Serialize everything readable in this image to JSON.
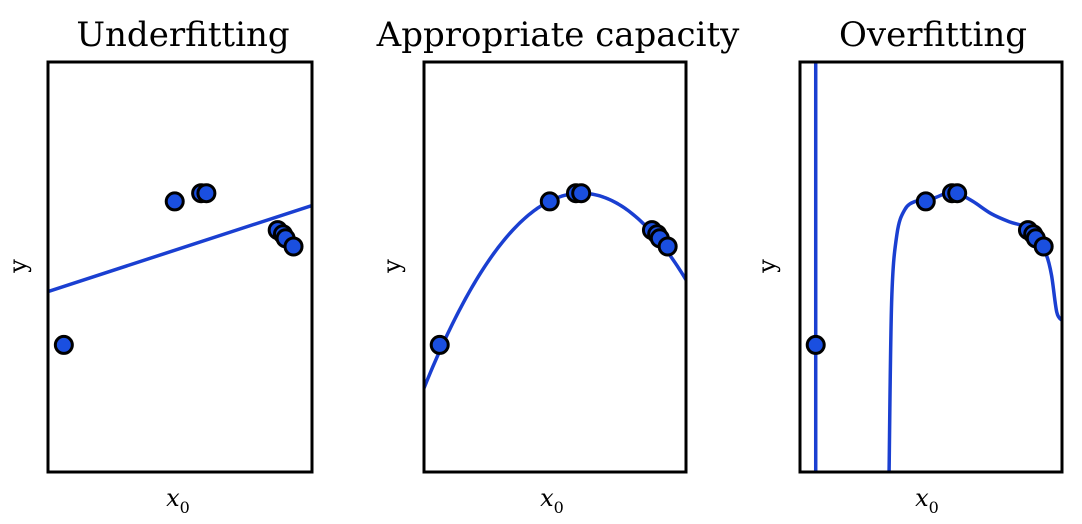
{
  "colors": {
    "curve": "#1a3fd1",
    "point_fill": "#1a4fe0",
    "point_stroke": "#000000",
    "frame": "#000000"
  },
  "chart_data": [
    {
      "type": "scatter",
      "title": "Underfitting",
      "xlabel": "x₀",
      "xlabel_base": "x",
      "xlabel_sub": "0",
      "ylabel": "y",
      "xlim": [
        0,
        1
      ],
      "ylim": [
        0,
        1
      ],
      "points": [
        {
          "x": 0.06,
          "y": 0.31
        },
        {
          "x": 0.48,
          "y": 0.66
        },
        {
          "x": 0.58,
          "y": 0.68
        },
        {
          "x": 0.6,
          "y": 0.68
        },
        {
          "x": 0.87,
          "y": 0.59
        },
        {
          "x": 0.89,
          "y": 0.58
        },
        {
          "x": 0.9,
          "y": 0.57
        },
        {
          "x": 0.93,
          "y": 0.55
        }
      ],
      "fit": {
        "kind": "linear",
        "intercept": 0.44,
        "slope": 0.21
      }
    },
    {
      "type": "scatter",
      "title": "Appropriate capacity",
      "xlabel": "x₀",
      "xlabel_base": "x",
      "xlabel_sub": "0",
      "ylabel": "y",
      "xlim": [
        0,
        1
      ],
      "ylim": [
        0,
        1
      ],
      "points": [
        {
          "x": 0.06,
          "y": 0.31
        },
        {
          "x": 0.48,
          "y": 0.66
        },
        {
          "x": 0.58,
          "y": 0.68
        },
        {
          "x": 0.6,
          "y": 0.68
        },
        {
          "x": 0.87,
          "y": 0.59
        },
        {
          "x": 0.89,
          "y": 0.58
        },
        {
          "x": 0.9,
          "y": 0.57
        },
        {
          "x": 0.93,
          "y": 0.55
        }
      ],
      "fit": {
        "kind": "quadratic",
        "vertex_x": 0.6,
        "vertex_y": 0.68,
        "a": -1.32
      }
    },
    {
      "type": "scatter",
      "title": "Overfitting",
      "xlabel": "x₀",
      "xlabel_base": "x",
      "xlabel_sub": "0",
      "ylabel": "y",
      "xlim": [
        0,
        1
      ],
      "ylim": [
        0,
        1
      ],
      "points": [
        {
          "x": 0.06,
          "y": 0.31
        },
        {
          "x": 0.48,
          "y": 0.66
        },
        {
          "x": 0.58,
          "y": 0.68
        },
        {
          "x": 0.6,
          "y": 0.68
        },
        {
          "x": 0.87,
          "y": 0.59
        },
        {
          "x": 0.89,
          "y": 0.58
        },
        {
          "x": 0.9,
          "y": 0.57
        },
        {
          "x": 0.93,
          "y": 0.55
        }
      ],
      "fit": {
        "kind": "piecewise",
        "vertical_x": 0.06,
        "curve": [
          {
            "x": 0.34,
            "y": 0.0
          },
          {
            "x": 0.35,
            "y": 0.42
          },
          {
            "x": 0.37,
            "y": 0.58
          },
          {
            "x": 0.4,
            "y": 0.64
          },
          {
            "x": 0.44,
            "y": 0.66
          },
          {
            "x": 0.48,
            "y": 0.66
          },
          {
            "x": 0.52,
            "y": 0.67
          },
          {
            "x": 0.56,
            "y": 0.68
          },
          {
            "x": 0.6,
            "y": 0.68
          },
          {
            "x": 0.66,
            "y": 0.66
          },
          {
            "x": 0.73,
            "y": 0.63
          },
          {
            "x": 0.8,
            "y": 0.61
          },
          {
            "x": 0.85,
            "y": 0.6
          },
          {
            "x": 0.88,
            "y": 0.58
          },
          {
            "x": 0.91,
            "y": 0.56
          },
          {
            "x": 0.94,
            "y": 0.53
          },
          {
            "x": 0.96,
            "y": 0.48
          },
          {
            "x": 0.98,
            "y": 0.39
          },
          {
            "x": 1.0,
            "y": 0.37
          }
        ]
      }
    }
  ]
}
